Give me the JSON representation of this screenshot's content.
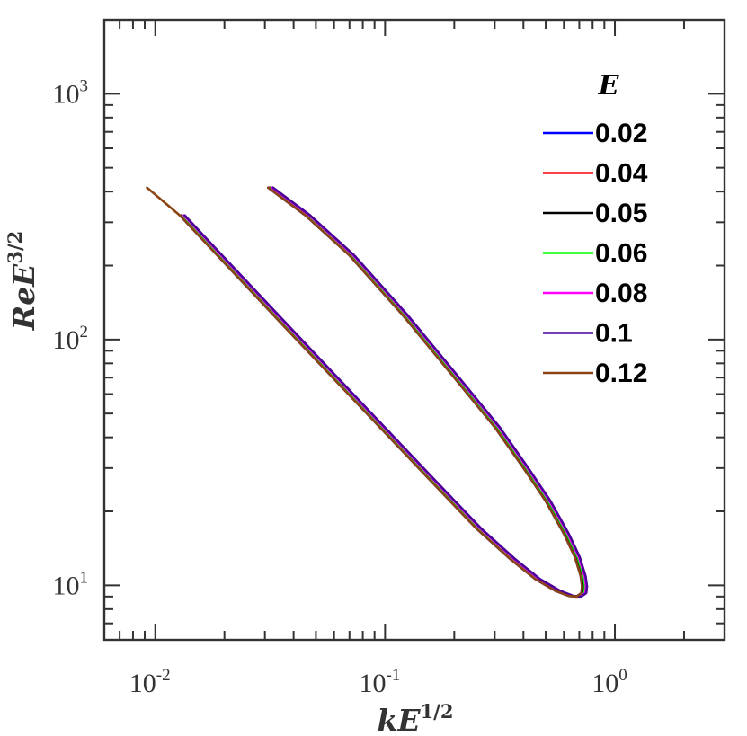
{
  "chart_data": {
    "type": "line",
    "title": "",
    "xlabel": "kE",
    "xlabel_sup": "1/2",
    "ylabel": "ReE",
    "ylabel_sup": "3/2",
    "xscale": "log",
    "yscale": "log",
    "xlim": [
      0.006,
      3.0
    ],
    "ylim": [
      6,
      2000
    ],
    "x_ticks": [
      {
        "value": 0.01,
        "base": "10",
        "exp": "-2"
      },
      {
        "value": 0.1,
        "base": "10",
        "exp": "-1"
      },
      {
        "value": 1,
        "base": "10",
        "exp": "0"
      }
    ],
    "y_ticks": [
      {
        "value": 10,
        "base": "10",
        "exp": "1"
      },
      {
        "value": 100,
        "base": "10",
        "exp": "2"
      },
      {
        "value": 1000,
        "base": "10",
        "exp": "3"
      }
    ],
    "grid": false,
    "legend": {
      "title": "E",
      "position": "top-right"
    },
    "series": [
      {
        "name": "0.02",
        "color": "#0000ff",
        "offset": 1.0,
        "branches": [
          [
            [
              0.0128,
              320
            ],
            [
              0.02,
              205
            ],
            [
              0.04,
              103
            ],
            [
              0.08,
              52
            ],
            [
              0.15,
              28
            ],
            [
              0.25,
              17
            ],
            [
              0.35,
              12.8
            ],
            [
              0.45,
              10.6
            ],
            [
              0.55,
              9.5
            ],
            [
              0.63,
              9.05
            ],
            [
              0.68,
              9.0
            ],
            [
              0.715,
              9.3
            ],
            [
              0.72,
              9.9
            ]
          ],
          [
            [
              0.72,
              9.9
            ],
            [
              0.71,
              10.9
            ],
            [
              0.67,
              13
            ],
            [
              0.6,
              16.2
            ],
            [
              0.5,
              22
            ],
            [
              0.4,
              30
            ],
            [
              0.3,
              44
            ],
            [
              0.2,
              70
            ],
            [
              0.12,
              125
            ],
            [
              0.07,
              220
            ],
            [
              0.045,
              320
            ],
            [
              0.031,
              415
            ]
          ]
        ]
      },
      {
        "name": "0.04",
        "color": "#ff0000",
        "offset": 1.01,
        "branches": [
          [
            [
              0.0128,
              320
            ],
            [
              0.02,
              205
            ],
            [
              0.04,
              103
            ],
            [
              0.08,
              52
            ],
            [
              0.15,
              28
            ],
            [
              0.25,
              17
            ],
            [
              0.35,
              12.8
            ],
            [
              0.45,
              10.6
            ],
            [
              0.55,
              9.5
            ],
            [
              0.63,
              9.05
            ],
            [
              0.68,
              9.0
            ],
            [
              0.715,
              9.3
            ],
            [
              0.72,
              9.9
            ]
          ],
          [
            [
              0.72,
              9.9
            ],
            [
              0.71,
              10.9
            ],
            [
              0.67,
              13
            ],
            [
              0.6,
              16.2
            ],
            [
              0.5,
              22
            ],
            [
              0.4,
              30
            ],
            [
              0.3,
              44
            ],
            [
              0.2,
              70
            ],
            [
              0.12,
              125
            ],
            [
              0.07,
              220
            ],
            [
              0.045,
              320
            ],
            [
              0.031,
              415
            ]
          ]
        ]
      },
      {
        "name": "0.05",
        "color": "#000000",
        "offset": 1.02,
        "branches": [
          [
            [
              0.0128,
              320
            ],
            [
              0.02,
              205
            ],
            [
              0.04,
              103
            ],
            [
              0.08,
              52
            ],
            [
              0.15,
              28
            ],
            [
              0.25,
              17
            ],
            [
              0.35,
              12.8
            ],
            [
              0.45,
              10.6
            ],
            [
              0.55,
              9.5
            ],
            [
              0.63,
              9.05
            ],
            [
              0.68,
              9.0
            ],
            [
              0.715,
              9.3
            ],
            [
              0.72,
              9.9
            ]
          ],
          [
            [
              0.72,
              9.9
            ],
            [
              0.71,
              10.9
            ],
            [
              0.67,
              13
            ],
            [
              0.6,
              16.2
            ],
            [
              0.5,
              22
            ],
            [
              0.4,
              30
            ],
            [
              0.3,
              44
            ],
            [
              0.2,
              70
            ],
            [
              0.12,
              125
            ],
            [
              0.07,
              220
            ],
            [
              0.045,
              320
            ],
            [
              0.031,
              415
            ]
          ]
        ]
      },
      {
        "name": "0.06",
        "color": "#00ff00",
        "offset": 1.03,
        "branches": [
          [
            [
              0.0128,
              320
            ],
            [
              0.02,
              205
            ],
            [
              0.04,
              103
            ],
            [
              0.08,
              52
            ],
            [
              0.15,
              28
            ],
            [
              0.25,
              17
            ],
            [
              0.35,
              12.8
            ],
            [
              0.45,
              10.6
            ],
            [
              0.55,
              9.5
            ],
            [
              0.63,
              9.05
            ],
            [
              0.68,
              9.0
            ],
            [
              0.715,
              9.3
            ],
            [
              0.72,
              9.9
            ]
          ],
          [
            [
              0.72,
              9.9
            ],
            [
              0.71,
              10.9
            ],
            [
              0.67,
              13
            ],
            [
              0.6,
              16.2
            ],
            [
              0.5,
              22
            ],
            [
              0.4,
              30
            ],
            [
              0.3,
              44
            ],
            [
              0.2,
              70
            ],
            [
              0.12,
              125
            ],
            [
              0.07,
              220
            ],
            [
              0.045,
              320
            ],
            [
              0.031,
              415
            ]
          ]
        ]
      },
      {
        "name": "0.08",
        "color": "#ff00ff",
        "offset": 1.04,
        "branches": [
          [
            [
              0.0128,
              320
            ],
            [
              0.02,
              205
            ],
            [
              0.04,
              103
            ],
            [
              0.08,
              52
            ],
            [
              0.15,
              28
            ],
            [
              0.25,
              17
            ],
            [
              0.35,
              12.8
            ],
            [
              0.45,
              10.6
            ],
            [
              0.55,
              9.5
            ],
            [
              0.63,
              9.05
            ],
            [
              0.68,
              9.0
            ],
            [
              0.715,
              9.3
            ],
            [
              0.72,
              9.9
            ]
          ],
          [
            [
              0.72,
              9.9
            ],
            [
              0.71,
              10.9
            ],
            [
              0.67,
              13
            ],
            [
              0.6,
              16.2
            ],
            [
              0.5,
              22
            ],
            [
              0.4,
              30
            ],
            [
              0.3,
              44
            ],
            [
              0.2,
              70
            ],
            [
              0.12,
              125
            ],
            [
              0.07,
              220
            ],
            [
              0.045,
              320
            ],
            [
              0.031,
              415
            ]
          ]
        ]
      },
      {
        "name": "0.1",
        "color": "#4b0099",
        "offset": 1.05,
        "branches": [
          [
            [
              0.0128,
              320
            ],
            [
              0.02,
              205
            ],
            [
              0.04,
              103
            ],
            [
              0.08,
              52
            ],
            [
              0.15,
              28
            ],
            [
              0.25,
              17
            ],
            [
              0.35,
              12.8
            ],
            [
              0.45,
              10.6
            ],
            [
              0.55,
              9.5
            ],
            [
              0.63,
              9.05
            ],
            [
              0.68,
              9.0
            ],
            [
              0.715,
              9.3
            ],
            [
              0.72,
              9.9
            ]
          ],
          [
            [
              0.72,
              9.9
            ],
            [
              0.71,
              10.9
            ],
            [
              0.67,
              13
            ],
            [
              0.6,
              16.2
            ],
            [
              0.5,
              22
            ],
            [
              0.4,
              30
            ],
            [
              0.3,
              44
            ],
            [
              0.2,
              70
            ],
            [
              0.12,
              125
            ],
            [
              0.07,
              220
            ],
            [
              0.045,
              320
            ],
            [
              0.031,
              415
            ]
          ]
        ]
      },
      {
        "name": "0.12",
        "color": "#8b4513",
        "offset": 1.0,
        "branches": [
          [
            [
              0.0092,
              415
            ],
            [
              0.0128,
              320
            ],
            [
              0.02,
              205
            ],
            [
              0.04,
              103
            ],
            [
              0.08,
              52
            ],
            [
              0.15,
              28
            ],
            [
              0.25,
              17
            ],
            [
              0.35,
              12.8
            ],
            [
              0.45,
              10.6
            ],
            [
              0.55,
              9.5
            ],
            [
              0.63,
              9.05
            ],
            [
              0.68,
              9.0
            ],
            [
              0.715,
              9.3
            ],
            [
              0.72,
              9.9
            ]
          ],
          [
            [
              0.72,
              9.9
            ],
            [
              0.71,
              10.9
            ],
            [
              0.67,
              13
            ],
            [
              0.6,
              16.2
            ],
            [
              0.5,
              22
            ],
            [
              0.4,
              30
            ],
            [
              0.3,
              44
            ],
            [
              0.2,
              70
            ],
            [
              0.12,
              125
            ],
            [
              0.07,
              220
            ],
            [
              0.045,
              320
            ],
            [
              0.031,
              415
            ]
          ]
        ]
      }
    ]
  }
}
